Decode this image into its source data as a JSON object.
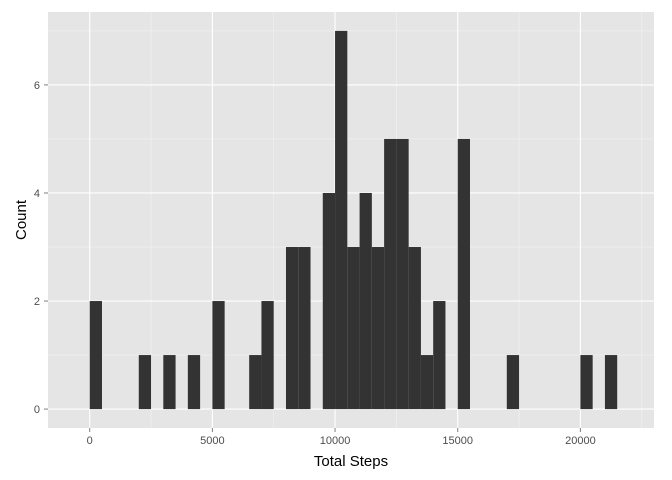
{
  "chart_data": {
    "type": "bar",
    "title": "",
    "xlabel": "Total Steps",
    "ylabel": "Count",
    "x_ticks": [
      "0",
      "5000",
      "10000",
      "15000",
      "20000"
    ],
    "x_tick_values": [
      0,
      5000,
      10000,
      15000,
      20000
    ],
    "y_ticks": [
      "0",
      "2",
      "4",
      "6"
    ],
    "y_tick_values": [
      0,
      2,
      4,
      6
    ],
    "xlim": [
      -1700,
      23000
    ],
    "ylim": [
      -0.35,
      7.35
    ],
    "bin_width": 500,
    "bins": [
      {
        "x_start": 0,
        "count": 2
      },
      {
        "x_start": 2000,
        "count": 1
      },
      {
        "x_start": 3000,
        "count": 1
      },
      {
        "x_start": 4000,
        "count": 1
      },
      {
        "x_start": 5000,
        "count": 2
      },
      {
        "x_start": 6500,
        "count": 1
      },
      {
        "x_start": 7000,
        "count": 2
      },
      {
        "x_start": 8000,
        "count": 3
      },
      {
        "x_start": 8500,
        "count": 3
      },
      {
        "x_start": 9500,
        "count": 4
      },
      {
        "x_start": 10000,
        "count": 7
      },
      {
        "x_start": 10500,
        "count": 3
      },
      {
        "x_start": 11000,
        "count": 4
      },
      {
        "x_start": 11500,
        "count": 3
      },
      {
        "x_start": 12000,
        "count": 5
      },
      {
        "x_start": 12500,
        "count": 5
      },
      {
        "x_start": 13000,
        "count": 3
      },
      {
        "x_start": 13500,
        "count": 1
      },
      {
        "x_start": 14000,
        "count": 2
      },
      {
        "x_start": 15000,
        "count": 5
      },
      {
        "x_start": 17000,
        "count": 1
      },
      {
        "x_start": 20000,
        "count": 1
      },
      {
        "x_start": 21000,
        "count": 1
      }
    ],
    "grid": true,
    "colors": {
      "panel_background": "#e5e5e5",
      "grid_major": "#ffffff",
      "grid_minor": "#f2f2f2",
      "bar_fill": "#333333",
      "tick_label": "#4d4d4d",
      "tick_mark": "#7f7f7f"
    }
  }
}
